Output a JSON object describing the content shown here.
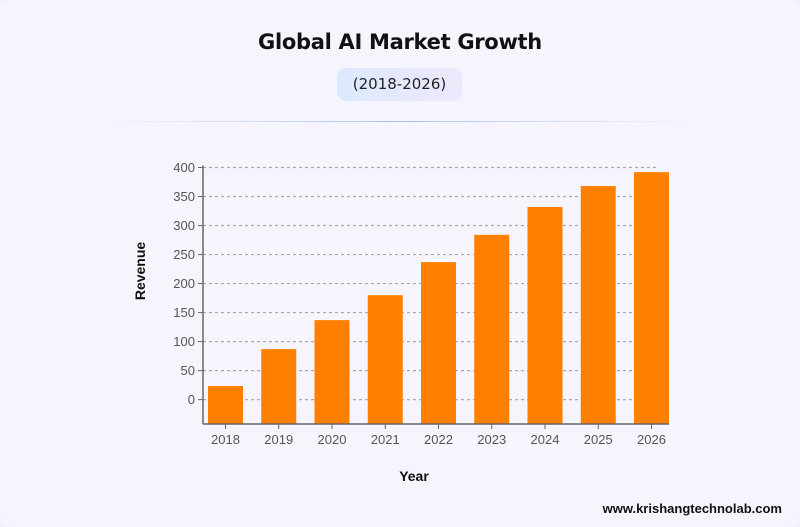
{
  "header": {
    "title": "Global AI Market Growth",
    "subtitle": "(2018-2026)"
  },
  "footer": {
    "website": "www.krishangtechnolab.com"
  },
  "chart_data": {
    "type": "bar",
    "title": "Global AI Market Growth",
    "subtitle": "(2018-2026)",
    "xlabel": "Year",
    "ylabel": "Revenue",
    "categories": [
      "2018",
      "2019",
      "2020",
      "2021",
      "2022",
      "2023",
      "2024",
      "2025",
      "2026"
    ],
    "values": [
      23.5,
      87,
      137,
      180,
      237,
      284,
      332,
      368,
      392
    ],
    "ylim": [
      -42,
      400
    ],
    "yticks": [
      0,
      50,
      100,
      150,
      200,
      250,
      300,
      350,
      400
    ],
    "grid": true,
    "bar_color": "#ff8000"
  }
}
